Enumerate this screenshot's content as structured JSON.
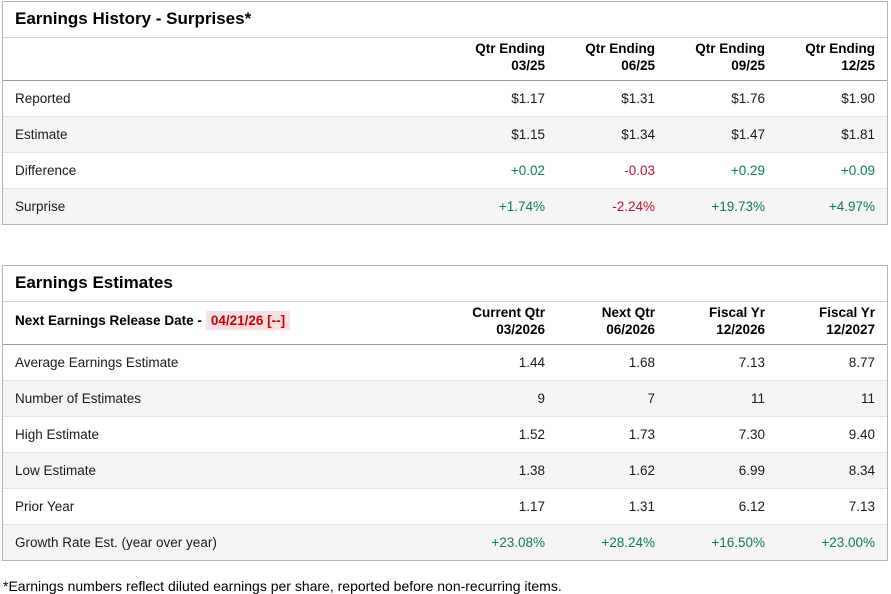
{
  "history": {
    "title": "Earnings History - Surprises*",
    "columns": [
      {
        "line1": "Qtr Ending",
        "line2": "03/25"
      },
      {
        "line1": "Qtr Ending",
        "line2": "06/25"
      },
      {
        "line1": "Qtr Ending",
        "line2": "09/25"
      },
      {
        "line1": "Qtr Ending",
        "line2": "12/25"
      }
    ],
    "rows": [
      {
        "label": "Reported",
        "values": [
          "$1.17",
          "$1.31",
          "$1.76",
          "$1.90"
        ],
        "tones": [
          "",
          "",
          "",
          ""
        ]
      },
      {
        "label": "Estimate",
        "values": [
          "$1.15",
          "$1.34",
          "$1.47",
          "$1.81"
        ],
        "tones": [
          "",
          "",
          "",
          ""
        ]
      },
      {
        "label": "Difference",
        "values": [
          "+0.02",
          "-0.03",
          "+0.29",
          "+0.09"
        ],
        "tones": [
          "pos",
          "neg",
          "pos",
          "pos"
        ]
      },
      {
        "label": "Surprise",
        "values": [
          "+1.74%",
          "-2.24%",
          "+19.73%",
          "+4.97%"
        ],
        "tones": [
          "pos",
          "neg",
          "pos",
          "pos"
        ]
      }
    ]
  },
  "estimates": {
    "title": "Earnings Estimates",
    "release_label": "Next Earnings Release Date -",
    "release_date": "04/21/26 [--]",
    "columns": [
      {
        "line1": "Current Qtr",
        "line2": "03/2026"
      },
      {
        "line1": "Next Qtr",
        "line2": "06/2026"
      },
      {
        "line1": "Fiscal Yr",
        "line2": "12/2026"
      },
      {
        "line1": "Fiscal Yr",
        "line2": "12/2027"
      }
    ],
    "rows": [
      {
        "label": "Average Earnings Estimate",
        "values": [
          "1.44",
          "1.68",
          "7.13",
          "8.77"
        ],
        "tones": [
          "",
          "",
          "",
          ""
        ]
      },
      {
        "label": "Number of Estimates",
        "values": [
          "9",
          "7",
          "11",
          "11"
        ],
        "tones": [
          "",
          "",
          "",
          ""
        ]
      },
      {
        "label": "High Estimate",
        "values": [
          "1.52",
          "1.73",
          "7.30",
          "9.40"
        ],
        "tones": [
          "",
          "",
          "",
          ""
        ]
      },
      {
        "label": "Low Estimate",
        "values": [
          "1.38",
          "1.62",
          "6.99",
          "8.34"
        ],
        "tones": [
          "",
          "",
          "",
          ""
        ]
      },
      {
        "label": "Prior Year",
        "values": [
          "1.17",
          "1.31",
          "6.12",
          "7.13"
        ],
        "tones": [
          "",
          "",
          "",
          ""
        ]
      },
      {
        "label": "Growth Rate Est. (year over year)",
        "values": [
          "+23.08%",
          "+28.24%",
          "+16.50%",
          "+23.00%"
        ],
        "tones": [
          "pos",
          "pos",
          "pos",
          "pos"
        ]
      }
    ]
  },
  "footnote": "*Earnings numbers reflect diluted earnings per share, reported before non-recurring items.",
  "colors": {
    "positive_green": "#0f7a56",
    "negative_red": "#c8102e",
    "release_date_red": "#cc0000",
    "release_date_highlight": "#fbdee1",
    "alternate_row_bg": "#f5f5f5"
  }
}
